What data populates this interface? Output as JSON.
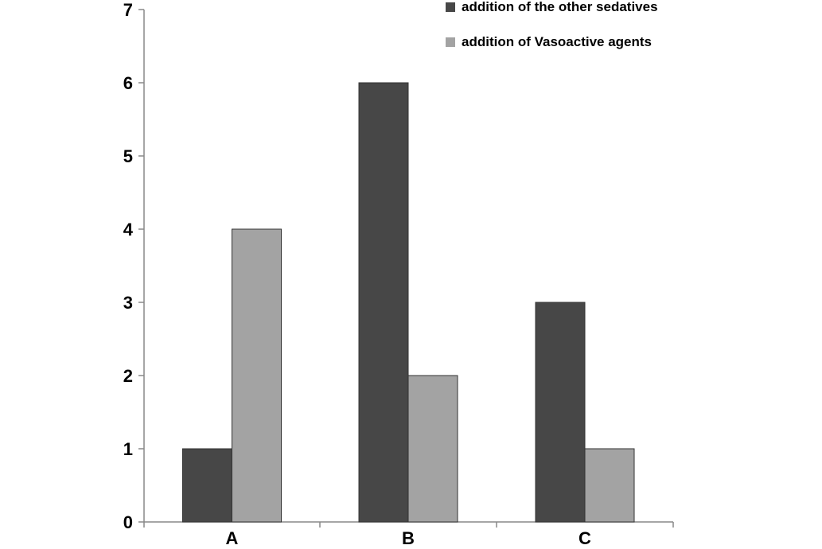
{
  "chart_data": {
    "type": "bar",
    "categories": [
      "A",
      "B",
      "C"
    ],
    "series": [
      {
        "name": "addition of the other sedatives",
        "values": [
          1,
          6,
          3
        ],
        "color": "#474747"
      },
      {
        "name": "addition of Vasoactive agents",
        "values": [
          4,
          2,
          1
        ],
        "color": "#a3a3a3"
      }
    ],
    "title": "",
    "xlabel": "",
    "ylabel": "",
    "ylim": [
      0,
      7
    ],
    "yticks": [
      0,
      1,
      2,
      3,
      4,
      5,
      6,
      7
    ],
    "grid": false,
    "legend_position": "top-right"
  }
}
